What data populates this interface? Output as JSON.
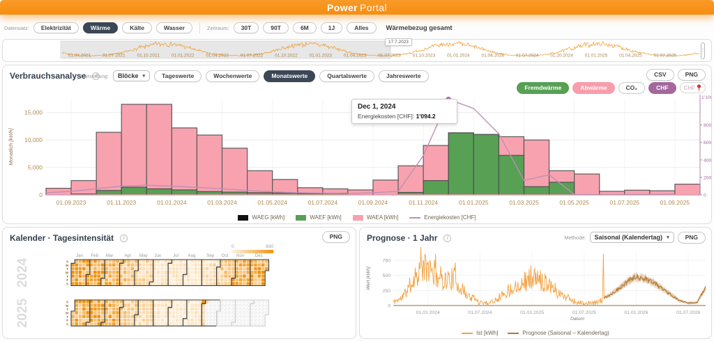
{
  "header": {
    "brand_bold": "Power",
    "brand_light": "Portal"
  },
  "filter_bar": {
    "datensatz_label": "Datensatz:",
    "datensatz_options": [
      "Elektrizität",
      "Wärme",
      "Kälte",
      "Wasser"
    ],
    "datensatz_selected": "Wärme",
    "zeitraum_label": "Zeitraum:",
    "zeitraum_options": [
      "30T",
      "90T",
      "6M",
      "1J",
      "Alles"
    ],
    "dataset_title": "Wärmebezug gesamt"
  },
  "timeline": {
    "selection_start_label": "17.7.2023",
    "tick_labels": [
      "01.04.2021",
      "01.07.2021",
      "01.10.2021",
      "01.01.2022",
      "01.04.2022",
      "01.07.2022",
      "01.10.2022",
      "01.01.2023",
      "01.04.2023",
      "01.07.2023",
      "01.10.2023",
      "01.01.2024",
      "01.04.2024",
      "01.07.2024",
      "01.10.2024",
      "01.01.2025",
      "01.04.2025",
      "01.07.2025"
    ]
  },
  "verbrauchsanalyse": {
    "title": "Verbrauchsanalyse",
    "darstellung_label": "Darstellung:",
    "display_select_value": "Blöcke",
    "view_options": [
      "Tageswerte",
      "Wochenwerte",
      "Monatswerte",
      "Quartalswerte",
      "Jahreswerte"
    ],
    "view_selected": "Monatswerte",
    "series_toggles": [
      {
        "label": "Fremdwärme",
        "color": "#57a054"
      },
      {
        "label": "Abwärme",
        "color": "#f89daa"
      },
      {
        "label": "CO₂",
        "color": "#ffffff"
      },
      {
        "label": "CHF",
        "color": "#a4689d"
      }
    ],
    "axis_pin_label": "CHF",
    "export_buttons": [
      "CSV",
      "PNG"
    ],
    "y_left_label": "Monatlich [kWh]",
    "y_left_ticks": [
      "0",
      "5,000",
      "10,000",
      "15,000"
    ],
    "y_right_ticks": [
      "0",
      "200",
      "400",
      "600",
      "800"
    ],
    "y_right_top": "1'100",
    "tooltip": {
      "title": "Dec 1, 2024",
      "line_label": "Energiekosten [CHF]:",
      "line_value": "1'094.2"
    },
    "legend": [
      {
        "label": "WAEG [kWh]",
        "swatch": "#111111",
        "type": "box"
      },
      {
        "label": "WAEF [kWh]",
        "swatch": "#57a054",
        "type": "box"
      },
      {
        "label": "WAEA [kWh]",
        "swatch": "#f8a2af",
        "type": "box"
      },
      {
        "label": "Energiekosten [CHF]",
        "swatch": "#bf8fb4",
        "type": "line"
      }
    ]
  },
  "kalender": {
    "title": "Kalender · Tagesintensität",
    "png_button": "PNG",
    "scale_min": "0",
    "scale_max": "830",
    "years": [
      "2024",
      "2025"
    ],
    "month_labels": [
      "Jan",
      "Feb",
      "Mar",
      "Apr",
      "May",
      "Jun",
      "Jul",
      "Aug",
      "Sep",
      "Oct",
      "Nov",
      "Dec"
    ],
    "day_labels": [
      "S",
      "M",
      "T",
      "W",
      "T",
      "F",
      "S"
    ]
  },
  "prognose": {
    "title": "Prognose · 1 Jahr",
    "methode_label": "Methode:",
    "methode_value": "Saisonal (Kalendertag)",
    "png_button": "PNG",
    "y_label": "Wert [kWh]",
    "x_label": "Datum",
    "legend": [
      {
        "label": "Ist [kWh]",
        "color": "#f2a243"
      },
      {
        "label": "Prognose (Saisonal – Kalendertag)",
        "color": "#b4752c"
      }
    ]
  },
  "colors": {
    "accent_orange": "#f78e10",
    "bar_pink": "#f8a2af",
    "bar_green": "#57a054",
    "bar_outline": "#555555",
    "cost_line": "#bf8fb4",
    "axis_tan": "#b08a4f",
    "axis_purple": "#a4689d",
    "selected_chip": "#3b4656",
    "sparkline": "#f0a23d",
    "ist_line": "#f2a243",
    "prognose_line": "#b4752c"
  },
  "chart_data": [
    {
      "id": "verbrauch",
      "type": "bar",
      "categories": [
        "2023-08",
        "2023-09",
        "2023-10",
        "2023-11",
        "2023-12",
        "2024-01",
        "2024-02",
        "2024-03",
        "2024-04",
        "2024-05",
        "2024-06",
        "2024-07",
        "2024-08",
        "2024-09",
        "2024-10",
        "2024-11",
        "2024-12",
        "2025-01",
        "2025-02",
        "2025-03",
        "2025-04",
        "2025-05",
        "2025-06",
        "2025-07",
        "2025-08",
        "2025-09"
      ],
      "series": [
        {
          "name": "WAEG [kWh]",
          "color": "#111111",
          "values": [
            0,
            0,
            0,
            0,
            0,
            0,
            0,
            0,
            0,
            0,
            0,
            0,
            0,
            0,
            0,
            0,
            0,
            0,
            0,
            0,
            0,
            0,
            0,
            0,
            0,
            0
          ]
        },
        {
          "name": "WAEA [kWh]",
          "color": "#f8a2af",
          "values": [
            1200,
            2600,
            11400,
            16500,
            16500,
            12200,
            10900,
            8500,
            4400,
            2800,
            1300,
            1100,
            900,
            2700,
            5300,
            9000,
            11300,
            11000,
            10600,
            10000,
            4400,
            3800,
            650,
            850,
            750,
            1950
          ]
        },
        {
          "name": "WAEF [kWh]",
          "color": "#57a054",
          "values": [
            0,
            150,
            800,
            1400,
            1100,
            900,
            600,
            500,
            400,
            350,
            250,
            300,
            0,
            0,
            450,
            2600,
            11300,
            11000,
            7200,
            1500,
            2300,
            0,
            0,
            0,
            0,
            0
          ]
        }
      ],
      "line_series": {
        "name": "Energiekosten [CHF]",
        "color": "#bf8fb4",
        "axis": "right",
        "values": [
          25,
          40,
          70,
          100,
          110,
          100,
          85,
          70,
          50,
          35,
          25,
          20,
          15,
          25,
          40,
          450,
          1094.2,
          990,
          700,
          165,
          230,
          5,
          3,
          3,
          3,
          8
        ]
      },
      "marker": {
        "category": "2024-12",
        "value": 1094.2
      },
      "ylabel": "Monatlich [kWh]",
      "ylim": [
        0,
        17500
      ],
      "y_ticks": [
        0,
        5000,
        10000,
        15000
      ],
      "y2lim": [
        0,
        1100
      ],
      "y2_ticks": [
        0,
        200,
        400,
        600,
        800
      ],
      "x_tick_labels": [
        "01.09.2023",
        "01.11.2023",
        "01.01.2024",
        "01.03.2024",
        "01.05.2024",
        "01.07.2024",
        "01.09.2024",
        "01.11.2024",
        "01.01.2025",
        "01.03.2025",
        "01.05.2025",
        "01.07.2025",
        "01.09.2025"
      ],
      "x_tick_month_indices": [
        1,
        3,
        5,
        7,
        9,
        11,
        13,
        15,
        17,
        19,
        21,
        23,
        25
      ]
    },
    {
      "id": "prognose",
      "type": "line",
      "x_start": "2023-09",
      "months_total": 36,
      "ylim": [
        0,
        900
      ],
      "y_ticks": [
        0,
        250,
        500,
        750
      ],
      "x_tick_labels": [
        "01.01.2024",
        "01.07.2024",
        "01.01.2025",
        "01.07.2025",
        "01.01.2026",
        "01.07.2026"
      ],
      "x_tick_month_indices": [
        4,
        10,
        16,
        22,
        28,
        34
      ],
      "series": [
        {
          "name": "Ist [kWh]",
          "color": "#f2a243",
          "start_month": 0,
          "anchors_monthly": [
            60,
            120,
            350,
            600,
            620,
            500,
            420,
            450,
            250,
            130,
            60,
            40,
            120,
            220,
            320,
            400,
            450,
            420,
            380,
            200,
            150,
            60,
            30,
            40,
            80
          ]
        },
        {
          "name": "Prognose (Saisonal – Kalendertag)",
          "color": "#b4752c",
          "start_month": 24,
          "anchors_monthly": [
            100,
            180,
            280,
            400,
            470,
            450,
            380,
            280,
            180,
            80,
            40,
            50,
            300
          ]
        }
      ]
    },
    {
      "id": "timeline-sparkline",
      "type": "line",
      "x_range": [
        "2021-04",
        "2025-09"
      ],
      "note": "seasonal daily heat consumption, peaks each winter",
      "selection_start": "17.7.2023"
    },
    {
      "id": "kalender-heatmap",
      "type": "heatmap",
      "unit_max": 830,
      "month_intensity": {
        "2024": [
          0.85,
          0.78,
          0.55,
          0.45,
          0.3,
          0.18,
          0.15,
          0.14,
          0.22,
          0.38,
          0.6,
          0.72
        ],
        "2025": [
          0.7,
          0.75,
          0.62,
          0.4,
          0.25,
          0.15,
          0.12,
          0.15,
          0.25,
          0,
          0,
          0
        ]
      },
      "future_from": "2025-09-08",
      "highlight_day": "2025-08-31"
    }
  ]
}
